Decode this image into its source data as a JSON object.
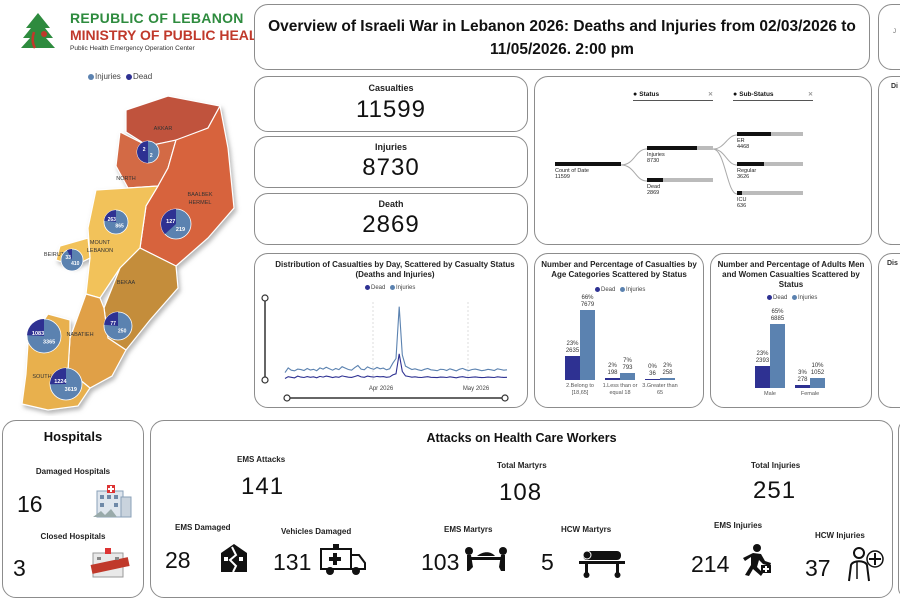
{
  "header": {
    "ministry_line1": "REPUBLIC OF LEBANON",
    "ministry_line2": "MINISTRY OF PUBLIC HEALTH",
    "ministry_line3": "Public Health Emergency Operation Center",
    "title": "Overview of Israeli War in Lebanon 2026: Deaths and Injuries from 02/03/2026 to 11/05/2026. 2:00 pm"
  },
  "map": {
    "legend_injuries": "Injuries",
    "legend_dead": "Dead",
    "regions": [
      {
        "name": "AKKAR",
        "dead": null,
        "injuries": null
      },
      {
        "name": "NORTH",
        "dead": "2",
        "injuries": "2"
      },
      {
        "name": "BAALBEK HERMEL",
        "dead": "127",
        "injuries": "219"
      },
      {
        "name": "MOUNT LEBANON",
        "dead": "263",
        "injuries": "865"
      },
      {
        "name": "BEIRUT",
        "dead": "33",
        "injuries": "410"
      },
      {
        "name": "BEKAA",
        "dead": "77",
        "injuries": "250"
      },
      {
        "name": "NABATIEH",
        "dead": "1083",
        "injuries": "3365"
      },
      {
        "name": "SOUTH",
        "dead": "1224",
        "injuries": "3619"
      }
    ],
    "colors": {
      "akkar": "#c0533e",
      "north": "#d36a45",
      "baalbek": "#d7643c",
      "mount": "#f2c25a",
      "beirut": "#f2c25a",
      "bekaa": "#c48d3a",
      "nabatieh": "#e0a046",
      "south": "#e8b04e",
      "dead": "#2e3192",
      "injuries": "#5b82b0"
    }
  },
  "kpis": {
    "casualties_label": "Casualties",
    "casualties": "11599",
    "injuries_label": "Injuries",
    "injuries": "8730",
    "death_label": "Death",
    "death": "2869"
  },
  "decomp_tree": {
    "status_header": "Status",
    "substatus_header": "Sub-Status",
    "root_label": "Count of Date",
    "root_value": "11599",
    "injuries_label": "Injuries",
    "injuries_value": "8730",
    "dead_label": "Dead",
    "dead_value": "2869",
    "er_label": "ER",
    "er_value": "4468",
    "regular_label": "Regular",
    "regular_value": "3626",
    "icu_label": "ICU",
    "icu_value": "636"
  },
  "daily_chart": {
    "title": "Distribution of Casualties by Day, Scattered by Casualty Status (Deaths and Injuries)",
    "legend_dead": "Dead",
    "legend_injuries": "Injuries",
    "x_label_apr": "Apr 2026",
    "x_label_may": "May 2026"
  },
  "age_chart": {
    "title": "Number and Percentage of Casualties by Age Categories Scattered by Status",
    "legend_dead": "Dead",
    "legend_injuries": "Injuries"
  },
  "sex_chart": {
    "title": "Number and Percentage of Adults Men and Women Casualties Scattered by Status",
    "legend_dead": "Dead",
    "legend_injuries": "Injuries"
  },
  "chart_data": [
    {
      "type": "line",
      "title": "Distribution of Casualties by Day, Scattered by Casualty Status (Deaths and Injuries)",
      "x_range": [
        "2026-03-02",
        "2026-05-11"
      ],
      "series": [
        {
          "name": "Dead",
          "values": [
            30,
            45,
            40,
            35,
            50,
            42,
            38,
            46,
            40,
            44,
            36,
            48,
            42,
            50,
            45,
            38,
            44,
            40,
            52,
            46,
            41,
            39,
            47,
            55,
            43,
            40,
            50,
            45,
            42,
            48,
            44,
            46,
            40,
            43,
            60,
            70,
            240,
            90,
            52,
            47,
            41,
            44,
            40,
            38,
            42,
            45,
            40,
            39,
            37,
            42,
            41,
            38,
            44,
            40,
            36,
            42,
            45,
            40,
            38,
            41,
            43,
            40,
            37,
            39,
            42,
            40,
            38,
            44,
            41,
            39,
            40
          ]
        },
        {
          "name": "Injuries",
          "values": [
            80,
            120,
            100,
            95,
            110,
            105,
            98,
            115,
            102,
            108,
            96,
            120,
            110,
            125,
            112,
            100,
            115,
            105,
            130,
            118,
            106,
            100,
            122,
            140,
            110,
            104,
            128,
            116,
            108,
            124,
            112,
            118,
            104,
            112,
            160,
            200,
            640,
            230,
            135,
            120,
            106,
            112,
            104,
            98,
            108,
            115,
            104,
            100,
            96,
            108,
            106,
            98,
            112,
            104,
            94,
            108,
            116,
            104,
            98,
            106,
            110,
            104,
            96,
            100,
            108,
            104,
            98,
            112,
            106,
            100,
            104
          ]
        }
      ]
    },
    {
      "type": "bar",
      "title": "Number and Percentage of Casualties by Age Categories Scattered by Status",
      "categories": [
        "2.Belong to [18,65]",
        "1.Less than or equal 18",
        "3.Greater than 65"
      ],
      "series": [
        {
          "name": "Dead",
          "values": [
            2635,
            198,
            36
          ],
          "labels": [
            "23%\n2635",
            "2%\n198",
            "0%\n36"
          ]
        },
        {
          "name": "Injuries",
          "values": [
            7679,
            793,
            258
          ],
          "labels": [
            "66%\n7679",
            "7%\n793",
            "2%\n258"
          ]
        }
      ]
    },
    {
      "type": "bar",
      "title": "Number and Percentage of Adults Men and Women Casualties Scattered by Status",
      "categories": [
        "Male",
        "Female"
      ],
      "series": [
        {
          "name": "Dead",
          "values": [
            2393,
            278
          ],
          "labels": [
            "23%\n2393",
            "3%\n278"
          ]
        },
        {
          "name": "Injuries",
          "values": [
            6885,
            1052
          ],
          "labels": [
            "65%\n6885",
            "10%\n1052"
          ]
        }
      ]
    }
  ],
  "hospitals": {
    "title": "Hospitals",
    "damaged_label": "Damaged Hospitals",
    "damaged_value": "16",
    "closed_label": "Closed Hospitals",
    "closed_value": "3"
  },
  "attacks": {
    "title": "Attacks on Health Care Workers",
    "ems_attacks_label": "EMS Attacks",
    "ems_attacks_value": "141",
    "total_martyrs_label": "Total Martyrs",
    "total_martyrs_value": "108",
    "total_injuries_label": "Total Injuries",
    "total_injuries_value": "251",
    "ems_damaged_label": "EMS Damaged",
    "ems_damaged_value": "28",
    "vehicles_damaged_label": "Vehicles Damaged",
    "vehicles_damaged_value": "131",
    "ems_martyrs_label": "EMS Martyrs",
    "ems_martyrs_value": "103",
    "hcw_martyrs_label": "HCW Martyrs",
    "hcw_martyrs_value": "5",
    "ems_injuries_label": "EMS Injuries",
    "ems_injuries_value": "214",
    "hcw_injuries_label": "HCW Injuries",
    "hcw_injuries_value": "37"
  }
}
